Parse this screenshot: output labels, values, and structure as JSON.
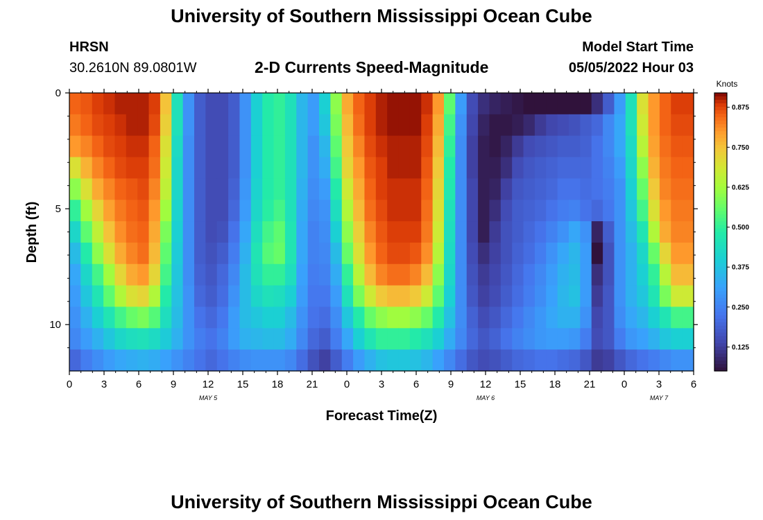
{
  "header": {
    "title": "University of Southern Mississippi Ocean Cube",
    "station": "HRSN",
    "coordinates": "30.2610N  89.0801W",
    "subtitle": "2-D Currents Speed-Magnitude",
    "model_label": "Model Start Time",
    "model_time": "05/05/2022 Hour 03",
    "footer_title": "University of Southern Mississippi Ocean Cube"
  },
  "chart_data": {
    "type": "heatmap",
    "title": "2-D Currents Speed-Magnitude",
    "xlabel": "Forecast Time(Z)",
    "ylabel": "Depth (ft)",
    "x_ticks": [
      "0",
      "3",
      "6",
      "9",
      "12",
      "15",
      "18",
      "21",
      "0",
      "3",
      "6",
      "9",
      "12",
      "15",
      "18",
      "21",
      "0",
      "3",
      "6"
    ],
    "date_labels": [
      {
        "label": "MAY 5",
        "hour": 12
      },
      {
        "label": "MAY 6",
        "hour": 36
      },
      {
        "label": "MAY 7",
        "hour": 51
      }
    ],
    "x_range_hours": [
      0,
      54
    ],
    "y_ticks": [
      0,
      5,
      10
    ],
    "y_range_ft": [
      0,
      12
    ],
    "colorbar": {
      "unit": "Knots",
      "ticks": [
        "0.125",
        "0.250",
        "0.375",
        "0.500",
        "0.625",
        "0.750",
        "0.875"
      ],
      "range": [
        0.05,
        0.92
      ]
    },
    "grid": false,
    "speed_rows_depth_ft": [
      0,
      1,
      2,
      3,
      4,
      5,
      6,
      7,
      8,
      9,
      10,
      11,
      12
    ],
    "speed_cols_hour": [
      0,
      1,
      2,
      3,
      4,
      5,
      6,
      7,
      8,
      9,
      10,
      11,
      12,
      13,
      14,
      15,
      16,
      17,
      18,
      19,
      20,
      21,
      22,
      23,
      24,
      25,
      26,
      27,
      28,
      29,
      30,
      31,
      32,
      33,
      34,
      35,
      36,
      37,
      38,
      39,
      40,
      41,
      42,
      43,
      44,
      45,
      46,
      47,
      48,
      49,
      50,
      51,
      52,
      53,
      54
    ],
    "speed_knots": [
      [
        0.85,
        0.86,
        0.88,
        0.89,
        0.9,
        0.9,
        0.9,
        0.88,
        0.75,
        0.45,
        0.28,
        0.18,
        0.15,
        0.15,
        0.18,
        0.28,
        0.4,
        0.48,
        0.5,
        0.45,
        0.35,
        0.3,
        0.4,
        0.6,
        0.78,
        0.85,
        0.88,
        0.9,
        0.91,
        0.91,
        0.91,
        0.89,
        0.8,
        0.55,
        0.3,
        0.15,
        0.1,
        0.08,
        0.07,
        0.06,
        0.05,
        0.05,
        0.05,
        0.05,
        0.05,
        0.05,
        0.1,
        0.18,
        0.3,
        0.45,
        0.7,
        0.8,
        0.85,
        0.88,
        0.88
      ],
      [
        0.83,
        0.85,
        0.87,
        0.88,
        0.89,
        0.9,
        0.9,
        0.87,
        0.73,
        0.45,
        0.28,
        0.18,
        0.15,
        0.15,
        0.18,
        0.28,
        0.4,
        0.48,
        0.5,
        0.45,
        0.35,
        0.3,
        0.38,
        0.58,
        0.76,
        0.84,
        0.88,
        0.9,
        0.91,
        0.91,
        0.91,
        0.88,
        0.78,
        0.52,
        0.28,
        0.14,
        0.08,
        0.06,
        0.06,
        0.07,
        0.09,
        0.12,
        0.14,
        0.15,
        0.16,
        0.18,
        0.2,
        0.26,
        0.32,
        0.45,
        0.68,
        0.8,
        0.85,
        0.87,
        0.87
      ],
      [
        0.8,
        0.82,
        0.85,
        0.87,
        0.88,
        0.89,
        0.89,
        0.85,
        0.7,
        0.43,
        0.27,
        0.18,
        0.15,
        0.15,
        0.18,
        0.28,
        0.4,
        0.48,
        0.5,
        0.45,
        0.35,
        0.28,
        0.35,
        0.55,
        0.74,
        0.82,
        0.87,
        0.89,
        0.9,
        0.9,
        0.9,
        0.87,
        0.76,
        0.5,
        0.27,
        0.13,
        0.07,
        0.06,
        0.08,
        0.12,
        0.15,
        0.16,
        0.17,
        0.18,
        0.18,
        0.19,
        0.22,
        0.26,
        0.32,
        0.43,
        0.65,
        0.79,
        0.84,
        0.86,
        0.86
      ],
      [
        0.7,
        0.77,
        0.82,
        0.85,
        0.87,
        0.88,
        0.88,
        0.84,
        0.68,
        0.42,
        0.27,
        0.18,
        0.15,
        0.15,
        0.18,
        0.28,
        0.4,
        0.48,
        0.5,
        0.45,
        0.35,
        0.28,
        0.33,
        0.52,
        0.72,
        0.8,
        0.86,
        0.88,
        0.9,
        0.9,
        0.9,
        0.86,
        0.74,
        0.48,
        0.27,
        0.13,
        0.07,
        0.07,
        0.1,
        0.15,
        0.17,
        0.18,
        0.19,
        0.2,
        0.2,
        0.2,
        0.22,
        0.25,
        0.3,
        0.42,
        0.6,
        0.77,
        0.83,
        0.85,
        0.85
      ],
      [
        0.6,
        0.7,
        0.78,
        0.82,
        0.85,
        0.86,
        0.87,
        0.82,
        0.66,
        0.42,
        0.27,
        0.18,
        0.15,
        0.15,
        0.19,
        0.29,
        0.41,
        0.48,
        0.5,
        0.45,
        0.34,
        0.27,
        0.3,
        0.48,
        0.68,
        0.78,
        0.85,
        0.88,
        0.89,
        0.89,
        0.89,
        0.85,
        0.72,
        0.47,
        0.27,
        0.14,
        0.07,
        0.08,
        0.13,
        0.17,
        0.18,
        0.19,
        0.2,
        0.22,
        0.22,
        0.21,
        0.22,
        0.24,
        0.28,
        0.4,
        0.56,
        0.74,
        0.82,
        0.84,
        0.84
      ],
      [
        0.5,
        0.62,
        0.72,
        0.79,
        0.83,
        0.85,
        0.86,
        0.8,
        0.62,
        0.41,
        0.27,
        0.18,
        0.15,
        0.15,
        0.2,
        0.3,
        0.42,
        0.49,
        0.52,
        0.45,
        0.33,
        0.26,
        0.28,
        0.44,
        0.64,
        0.76,
        0.84,
        0.87,
        0.89,
        0.89,
        0.89,
        0.84,
        0.7,
        0.45,
        0.27,
        0.14,
        0.07,
        0.1,
        0.15,
        0.18,
        0.19,
        0.2,
        0.22,
        0.24,
        0.25,
        0.22,
        0.2,
        0.23,
        0.28,
        0.38,
        0.52,
        0.7,
        0.8,
        0.83,
        0.83
      ],
      [
        0.42,
        0.55,
        0.66,
        0.75,
        0.81,
        0.84,
        0.85,
        0.78,
        0.58,
        0.4,
        0.27,
        0.18,
        0.15,
        0.16,
        0.22,
        0.32,
        0.44,
        0.52,
        0.55,
        0.46,
        0.32,
        0.25,
        0.27,
        0.4,
        0.6,
        0.73,
        0.82,
        0.86,
        0.88,
        0.88,
        0.88,
        0.83,
        0.68,
        0.44,
        0.27,
        0.14,
        0.07,
        0.12,
        0.16,
        0.18,
        0.2,
        0.22,
        0.25,
        0.28,
        0.32,
        0.28,
        0.08,
        0.18,
        0.28,
        0.36,
        0.46,
        0.64,
        0.78,
        0.82,
        0.82
      ],
      [
        0.36,
        0.48,
        0.6,
        0.7,
        0.78,
        0.82,
        0.84,
        0.76,
        0.55,
        0.39,
        0.27,
        0.18,
        0.16,
        0.18,
        0.24,
        0.34,
        0.46,
        0.54,
        0.56,
        0.46,
        0.32,
        0.25,
        0.26,
        0.36,
        0.56,
        0.7,
        0.8,
        0.85,
        0.87,
        0.87,
        0.86,
        0.81,
        0.65,
        0.43,
        0.27,
        0.15,
        0.1,
        0.13,
        0.16,
        0.19,
        0.21,
        0.24,
        0.28,
        0.32,
        0.35,
        0.3,
        0.05,
        0.16,
        0.28,
        0.34,
        0.42,
        0.56,
        0.72,
        0.8,
        0.8
      ],
      [
        0.32,
        0.42,
        0.52,
        0.62,
        0.72,
        0.78,
        0.8,
        0.72,
        0.52,
        0.38,
        0.27,
        0.19,
        0.17,
        0.2,
        0.26,
        0.36,
        0.45,
        0.5,
        0.5,
        0.44,
        0.31,
        0.24,
        0.25,
        0.33,
        0.5,
        0.65,
        0.76,
        0.82,
        0.84,
        0.84,
        0.82,
        0.76,
        0.6,
        0.42,
        0.27,
        0.16,
        0.12,
        0.14,
        0.17,
        0.2,
        0.23,
        0.26,
        0.3,
        0.34,
        0.36,
        0.3,
        0.1,
        0.16,
        0.28,
        0.34,
        0.4,
        0.5,
        0.65,
        0.76,
        0.76
      ],
      [
        0.3,
        0.38,
        0.46,
        0.55,
        0.64,
        0.7,
        0.72,
        0.64,
        0.48,
        0.37,
        0.28,
        0.2,
        0.18,
        0.21,
        0.28,
        0.36,
        0.42,
        0.45,
        0.44,
        0.4,
        0.3,
        0.23,
        0.23,
        0.3,
        0.45,
        0.58,
        0.68,
        0.74,
        0.76,
        0.76,
        0.74,
        0.68,
        0.55,
        0.4,
        0.27,
        0.17,
        0.13,
        0.15,
        0.18,
        0.21,
        0.24,
        0.27,
        0.31,
        0.35,
        0.37,
        0.3,
        0.12,
        0.17,
        0.28,
        0.34,
        0.38,
        0.46,
        0.58,
        0.68,
        0.68
      ],
      [
        0.28,
        0.34,
        0.4,
        0.46,
        0.52,
        0.56,
        0.58,
        0.54,
        0.44,
        0.36,
        0.28,
        0.22,
        0.2,
        0.23,
        0.3,
        0.36,
        0.38,
        0.4,
        0.4,
        0.36,
        0.28,
        0.22,
        0.21,
        0.27,
        0.38,
        0.48,
        0.56,
        0.6,
        0.62,
        0.62,
        0.6,
        0.56,
        0.48,
        0.37,
        0.27,
        0.19,
        0.15,
        0.17,
        0.2,
        0.23,
        0.26,
        0.29,
        0.32,
        0.34,
        0.34,
        0.28,
        0.14,
        0.17,
        0.27,
        0.32,
        0.35,
        0.4,
        0.46,
        0.52,
        0.52
      ],
      [
        0.26,
        0.3,
        0.34,
        0.38,
        0.42,
        0.44,
        0.45,
        0.43,
        0.39,
        0.34,
        0.28,
        0.24,
        0.22,
        0.25,
        0.3,
        0.34,
        0.35,
        0.36,
        0.36,
        0.33,
        0.26,
        0.2,
        0.18,
        0.24,
        0.32,
        0.4,
        0.46,
        0.5,
        0.5,
        0.5,
        0.48,
        0.45,
        0.4,
        0.33,
        0.26,
        0.2,
        0.17,
        0.19,
        0.22,
        0.25,
        0.27,
        0.29,
        0.3,
        0.3,
        0.29,
        0.24,
        0.15,
        0.17,
        0.24,
        0.29,
        0.31,
        0.34,
        0.38,
        0.4,
        0.4
      ],
      [
        0.2,
        0.24,
        0.27,
        0.3,
        0.32,
        0.33,
        0.34,
        0.33,
        0.31,
        0.28,
        0.25,
        0.22,
        0.2,
        0.22,
        0.25,
        0.27,
        0.28,
        0.28,
        0.28,
        0.26,
        0.21,
        0.16,
        0.13,
        0.18,
        0.24,
        0.3,
        0.34,
        0.37,
        0.38,
        0.38,
        0.37,
        0.35,
        0.31,
        0.26,
        0.21,
        0.17,
        0.15,
        0.16,
        0.18,
        0.2,
        0.21,
        0.22,
        0.22,
        0.21,
        0.2,
        0.17,
        0.12,
        0.13,
        0.17,
        0.2,
        0.22,
        0.24,
        0.26,
        0.28,
        0.28
      ]
    ]
  }
}
